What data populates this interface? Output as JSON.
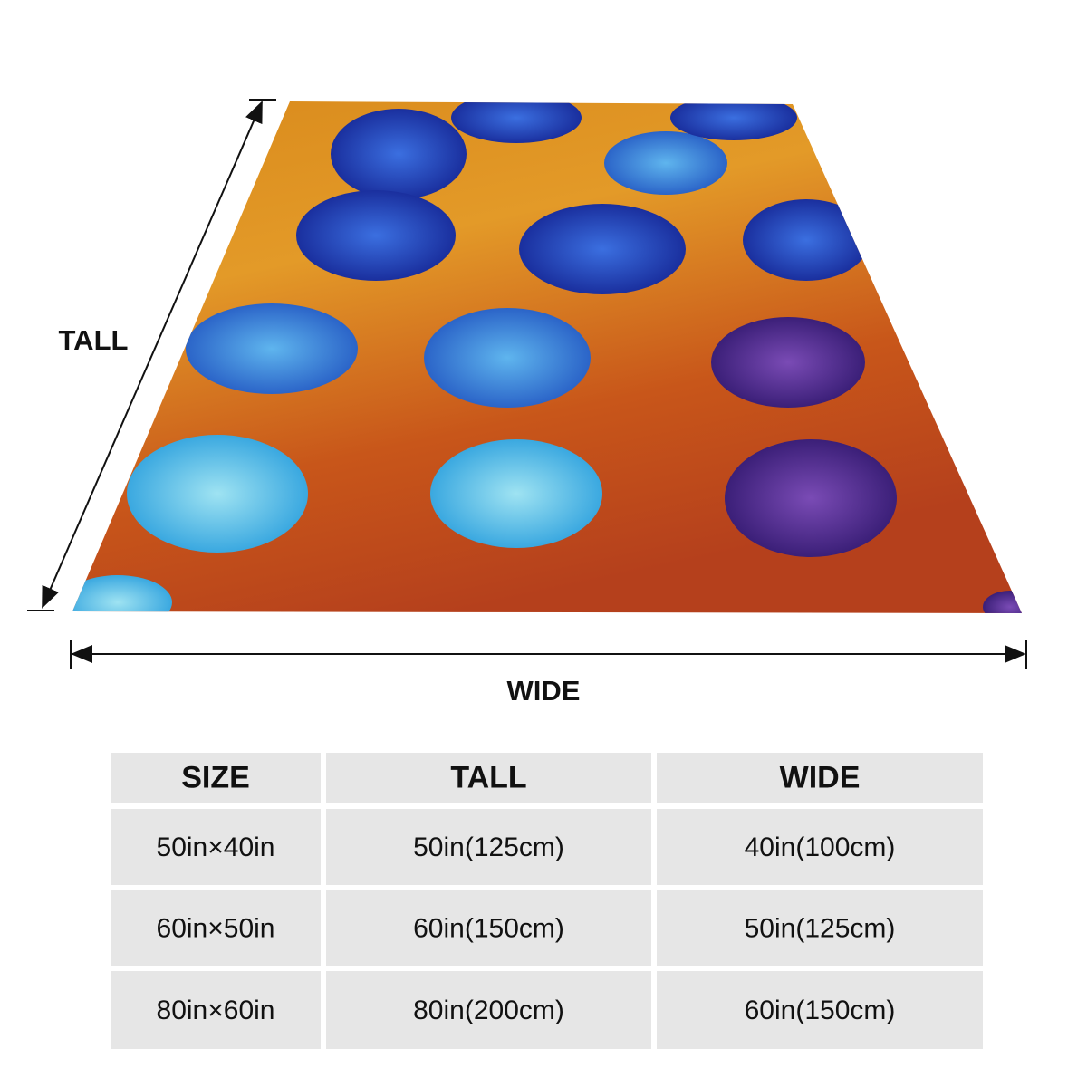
{
  "labels": {
    "tall": "TALL",
    "wide": "WIDE"
  },
  "table": {
    "header": [
      "SIZE",
      "TALL",
      "WIDE"
    ],
    "rows": [
      [
        "50in×40in",
        "50in(125cm)",
        "40in(100cm)"
      ],
      [
        "60in×50in",
        "60in(150cm)",
        "50in(125cm)"
      ],
      [
        "80in×60in",
        "80in(200cm)",
        "60in(150cm)"
      ]
    ]
  }
}
